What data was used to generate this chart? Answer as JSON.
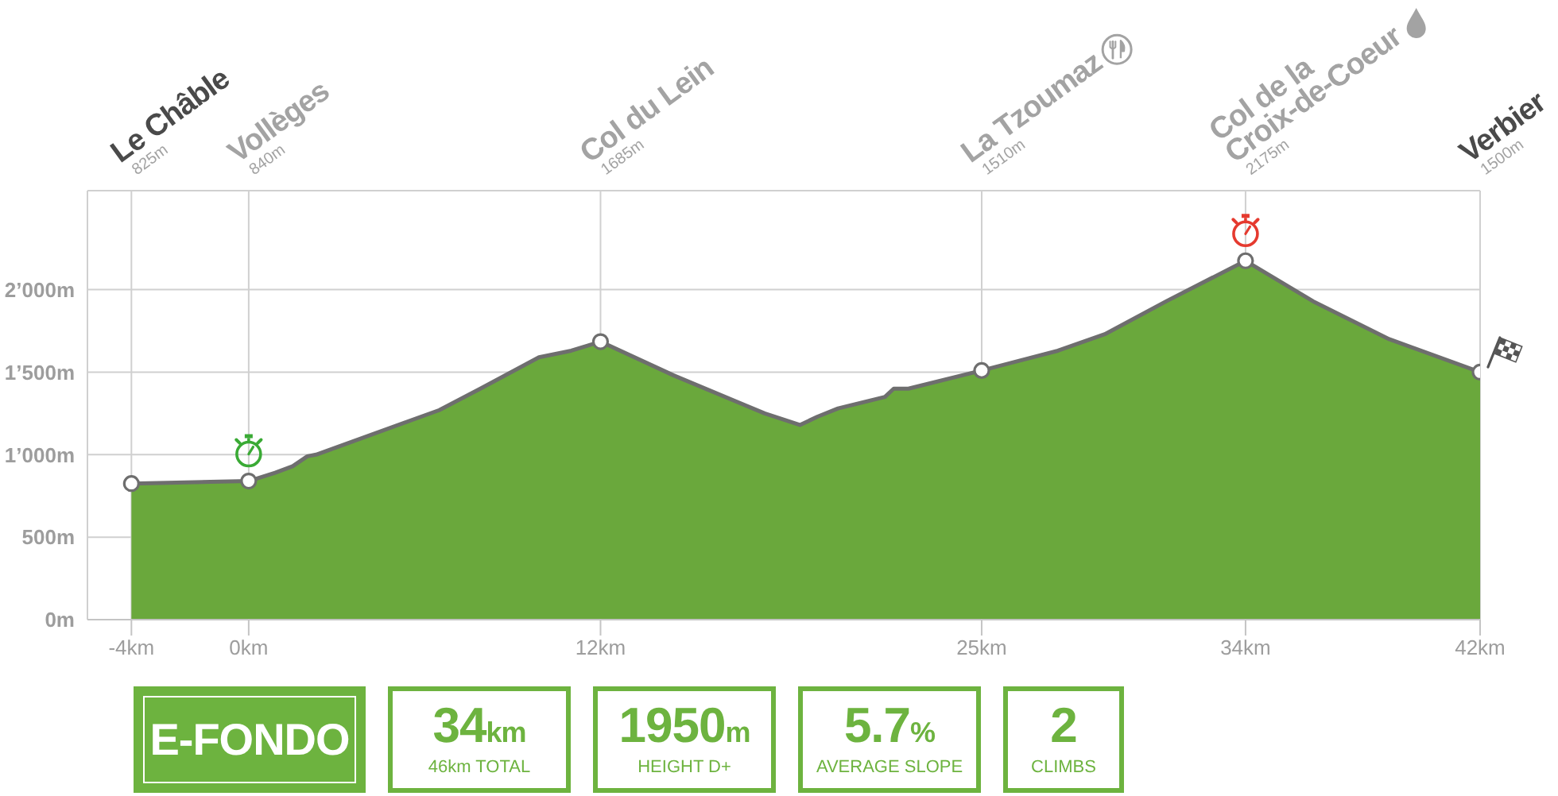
{
  "chart_data": {
    "type": "area",
    "series": [
      {
        "color": "#6aa83c",
        "x": [
          -4,
          -1.3,
          0,
          0.9,
          1.5,
          2.0,
          2.3,
          6.5,
          7.9,
          9.9,
          11.0,
          12,
          14.5,
          17.6,
          18.8,
          19.4,
          20.1,
          21.7,
          22.0,
          22.5,
          25,
          27.6,
          29.2,
          31.3,
          34,
          36.3,
          38.9,
          42
        ],
        "values": [
          825,
          835,
          840,
          890,
          930,
          990,
          1000,
          1270,
          1400,
          1590,
          1630,
          1685,
          1480,
          1250,
          1180,
          1230,
          1280,
          1350,
          1400,
          1400,
          1510,
          1630,
          1730,
          1930,
          2175,
          1930,
          1700,
          1500
        ]
      },
      {
        "type": "scatter",
        "color": "#ffffff",
        "marker": "circle",
        "x": [
          -4,
          0,
          12,
          25,
          34,
          42
        ],
        "values": [
          825,
          840,
          1685,
          1510,
          2175,
          1500
        ]
      }
    ],
    "xlim": [
      -5.5,
      42
    ],
    "xticks": [
      {
        "value": -4,
        "label": "-4km"
      },
      {
        "value": 0,
        "label": "0km"
      },
      {
        "value": 12,
        "label": "12km"
      },
      {
        "value": 25,
        "label": "25km"
      },
      {
        "value": 34,
        "label": "34km"
      },
      {
        "value": 42,
        "label": "42km"
      }
    ],
    "ylim": [
      0,
      2600
    ],
    "yticks": [
      {
        "value": 0,
        "label": "0m"
      },
      {
        "value": 500,
        "label": "500m"
      },
      {
        "value": 1000,
        "label": "1’000m"
      },
      {
        "value": 1500,
        "label": "1’500m"
      },
      {
        "value": 2000,
        "label": "2’000m"
      }
    ],
    "grid": true,
    "annotations": [
      "Le Châble\n825m",
      "Vollèges\n840m",
      "Col du Lein\n1685m",
      "La Tzoumaz\n1510m",
      "Col de la\nCroix-de-Coeur\n2175m",
      "Verbier\n1500m",
      "E-FONDO",
      "34km\n46km TOTAL",
      "1950m\nHEIGHT D+",
      "5.7%\nAVERAGE SLOPE",
      "2\nCLIMBS"
    ]
  }
}
